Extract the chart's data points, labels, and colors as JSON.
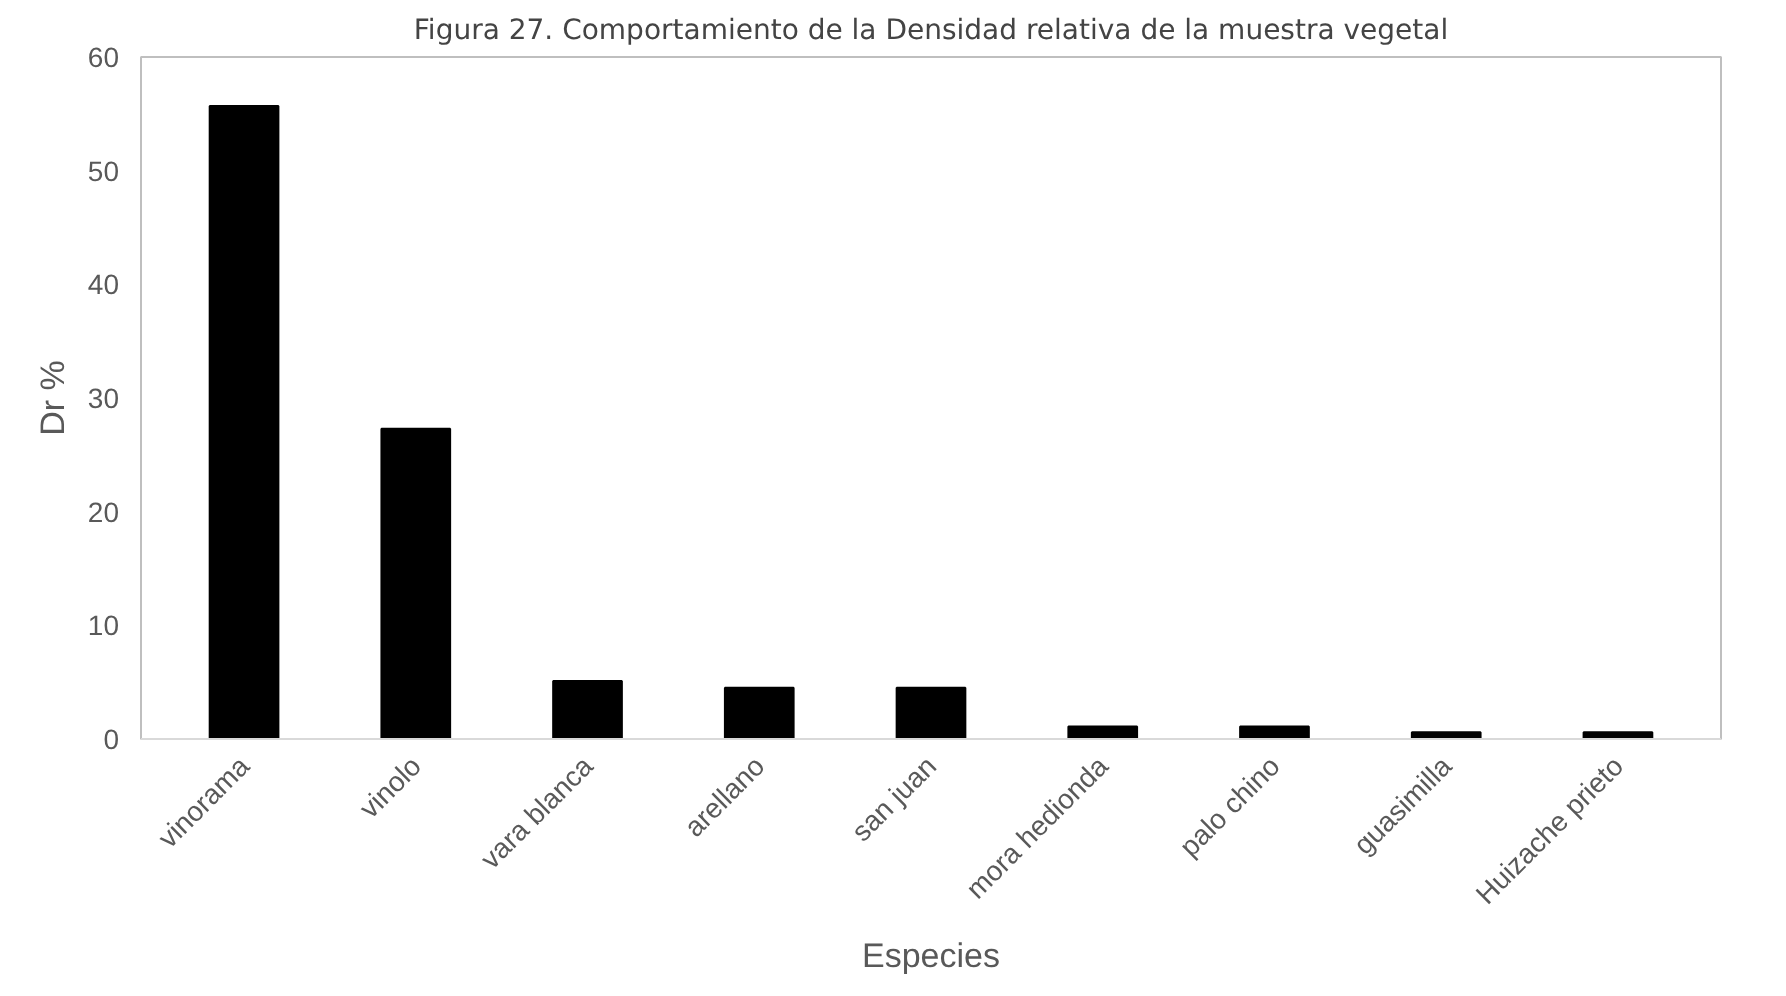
{
  "chart_data": {
    "type": "bar",
    "title": "Figura 27. Comportamiento de la Densidad relativa de la muestra vegetal",
    "xlabel": "Especies",
    "ylabel": "Dr %",
    "categories": [
      "vinorama",
      "vinolo",
      "vara blanca",
      "arellano",
      "san juan",
      "mora hedionda",
      "palo chino",
      "guasimilla",
      "Huizache prieto"
    ],
    "values": [
      55.7,
      27.3,
      5.1,
      4.5,
      4.5,
      1.1,
      1.1,
      0.6,
      0.6
    ],
    "color": "#000000",
    "ylim": [
      0,
      60
    ],
    "yticks": [
      0,
      10,
      20,
      30,
      40,
      50,
      60
    ],
    "grid": false
  }
}
